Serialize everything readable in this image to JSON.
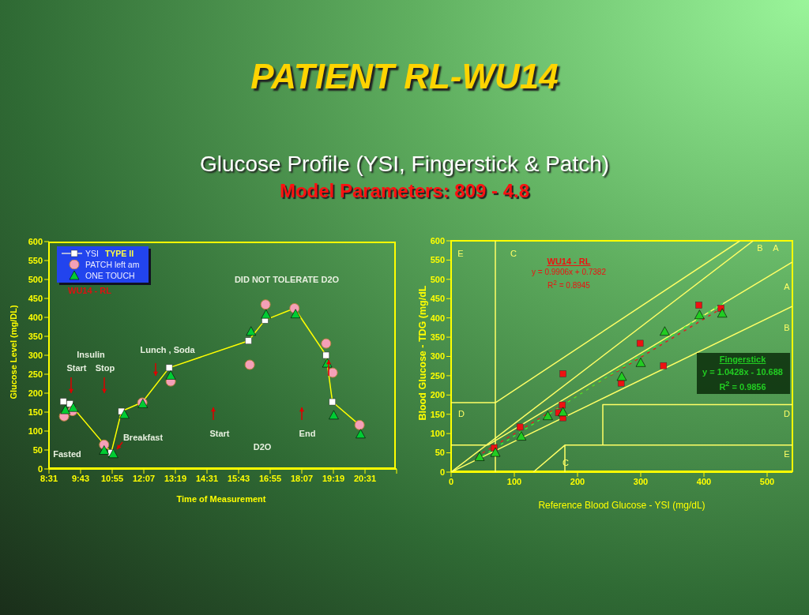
{
  "chart_data": [
    {
      "type": "line",
      "title": "PATIENT RL-WU14",
      "subtitle": "Glucose Profile (YSI, Fingerstick & Patch)",
      "xlabel": "Time of Measurement",
      "ylabel": "Glucose Level (mg/DL)",
      "legend": "top left",
      "legend_title": "TYPE II",
      "annotations": [
        "Model Parameters: 809 - 4.8",
        "WU14 - RL",
        "Insulin",
        "Start",
        "Stop",
        "Lunch , Soda",
        "Breakfast",
        "Fasted",
        "Start",
        "End",
        "D2O",
        "DID NOT TOLERATE D2O"
      ],
      "xlim": [
        8.5167,
        21.7167
      ],
      "xticks": [
        {
          "value": 8.5167,
          "label": "8:31"
        },
        {
          "value": 9.7167,
          "label": "9:43"
        },
        {
          "value": 10.9167,
          "label": "10:55"
        },
        {
          "value": 12.1167,
          "label": "12:07"
        },
        {
          "value": 13.3167,
          "label": "13:19"
        },
        {
          "value": 14.5167,
          "label": "14:31"
        },
        {
          "value": 15.7167,
          "label": "15:43"
        },
        {
          "value": 16.9167,
          "label": "16:55"
        },
        {
          "value": 18.1167,
          "label": "18:07"
        },
        {
          "value": 19.3167,
          "label": "19:19"
        },
        {
          "value": 20.5167,
          "label": "20:31"
        },
        {
          "value": 21.7167,
          "label": null
        }
      ],
      "ylim": [
        0,
        600
      ],
      "yticks": [
        0,
        50,
        100,
        150,
        200,
        250,
        300,
        350,
        400,
        450,
        500,
        550,
        600
      ],
      "series": [
        {
          "name": "YSI",
          "marker": "square",
          "color": "#ffffff",
          "x": [
            9.06,
            9.31,
            10.88,
            11.27,
            12.06,
            13.08,
            16.09,
            16.72,
            17.84,
            19.04,
            19.28,
            20.31
          ],
          "values": [
            178,
            172,
            43,
            152,
            176,
            267,
            338,
            393,
            424,
            300,
            177,
            116
          ]
        },
        {
          "name": "PATCH left am",
          "type": "scatter",
          "marker": "circle",
          "color": "#f4a0b8",
          "x": [
            9.09,
            9.41,
            10.61,
            12.06,
            13.14,
            16.14,
            16.74,
            17.84,
            19.04,
            19.29,
            20.31
          ],
          "values": [
            139,
            153,
            64,
            175,
            231,
            275,
            434,
            424,
            331,
            254,
            116
          ]
        },
        {
          "name": "ONE TOUCH",
          "type": "scatter",
          "marker": "triangle",
          "color": "#00cc33",
          "x": [
            9.14,
            9.44,
            10.61,
            10.96,
            11.38,
            12.08,
            13.14,
            16.19,
            16.76,
            17.88,
            19.08,
            19.33,
            20.35
          ],
          "values": [
            156,
            162,
            49,
            40,
            144,
            172,
            247,
            363,
            408,
            409,
            279,
            142,
            92
          ]
        }
      ]
    },
    {
      "type": "scatter",
      "xlabel": "Reference Blood Glucose - YSI (mg/dL)",
      "ylabel": "Blood Glucose - TDG (mg/dL",
      "annotations": [
        "WU14 - RL",
        "y = 0.9906x + 0.7382",
        "R$^{2}$ = 0.8945",
        "Fingerstick",
        "y = 1.0428x - 10.688",
        "R$^{2}$ = 0.9856",
        "E",
        "C",
        "B",
        "A",
        "A",
        "B",
        "D",
        "D",
        "E",
        "C"
      ],
      "xlim": [
        0,
        540
      ],
      "xticks": [
        0,
        100,
        200,
        300,
        400,
        500
      ],
      "ylim": [
        0,
        600
      ],
      "yticks": [
        0,
        50,
        100,
        150,
        200,
        250,
        300,
        350,
        400,
        450,
        500,
        550,
        600
      ],
      "series": [
        {
          "type": "line",
          "marker": "none",
          "color": "#ffff66",
          "x": [
            70,
            70
          ],
          "values": [
            0,
            600
          ]
        },
        {
          "type": "line",
          "marker": "none",
          "color": "#ffff66",
          "x": [
            0,
            70
          ],
          "values": [
            180,
            180
          ]
        },
        {
          "type": "line",
          "marker": "none",
          "color": "#ffff66",
          "x": [
            0,
            58
          ],
          "values": [
            70,
            70
          ]
        },
        {
          "type": "line",
          "marker": "none",
          "color": "#ffff66",
          "x": [
            70,
            457
          ],
          "values": [
            180,
            600
          ]
        },
        {
          "type": "line",
          "marker": "none",
          "color": "#ffff66",
          "x": [
            0,
            478
          ],
          "values": [
            0,
            600
          ]
        },
        {
          "type": "line",
          "marker": "none",
          "color": "#ffff66",
          "x": [
            58,
            540
          ],
          "values": [
            70,
            545
          ]
        },
        {
          "type": "line",
          "marker": "none",
          "color": "#ffff66",
          "x": [
            0,
            540
          ],
          "values": [
            0,
            430
          ]
        },
        {
          "type": "line",
          "marker": "none",
          "color": "#ffff66",
          "x": [
            130,
            180,
            180
          ],
          "values": [
            0,
            70,
            0
          ]
        },
        {
          "type": "line",
          "marker": "none",
          "color": "#ffff66",
          "x": [
            180,
            540
          ],
          "values": [
            70,
            70
          ]
        },
        {
          "type": "line",
          "marker": "none",
          "color": "#ffff66",
          "x": [
            540,
            240,
            240
          ],
          "values": [
            175,
            175,
            70
          ]
        },
        {
          "type": "line",
          "marker": "none",
          "line_style": "dotted",
          "color": "#dd2222",
          "x": [
            40,
            430
          ],
          "values": [
            40,
            427
          ]
        },
        {
          "type": "line",
          "marker": "none",
          "line_style": "dotted",
          "color": "#33ee33",
          "x": [
            40,
            430
          ],
          "values": [
            31,
            438
          ]
        },
        {
          "marker": "square",
          "color": "#ee1111",
          "x": [
            68,
            109,
            177,
            176,
            170,
            177,
            269,
            299,
            336,
            392,
            427
          ],
          "values": [
            63,
            117,
            255,
            174,
            154,
            141,
            231,
            334,
            276,
            433,
            425
          ]
        },
        {
          "marker": "triangle",
          "color": "#22cc22",
          "x": [
            45,
            70,
            111,
            153,
            177,
            270,
            300,
            338,
            393,
            429
          ],
          "values": [
            40,
            51,
            93,
            146,
            156,
            248,
            284,
            365,
            408,
            412
          ]
        }
      ]
    }
  ]
}
